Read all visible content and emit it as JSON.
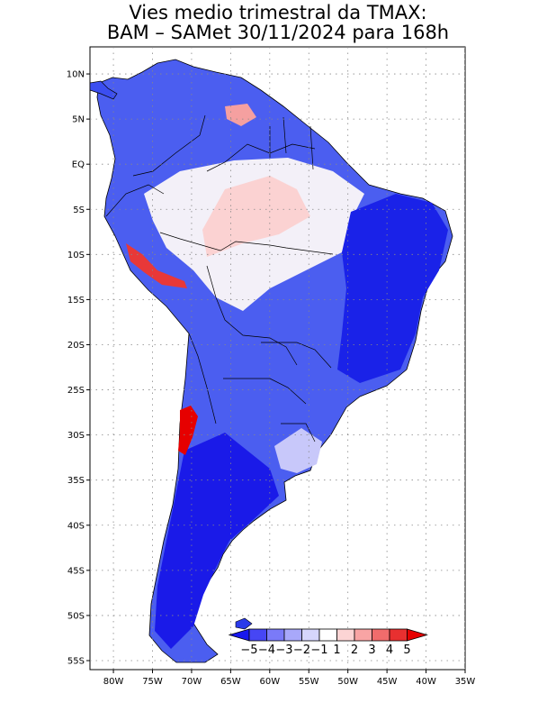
{
  "title": {
    "line1": "Vies medio trimestral da TMAX:",
    "line2": "BAM – SAMet 30/11/2024  para 168h"
  },
  "map": {
    "lon_range": [
      -83,
      -35
    ],
    "lat_range": [
      -56,
      13
    ],
    "lat_labels": [
      "10N",
      "5N",
      "EQ",
      "5S",
      "10S",
      "15S",
      "20S",
      "25S",
      "30S",
      "35S",
      "40S",
      "45S",
      "50S",
      "55S"
    ],
    "lat_values": [
      10,
      5,
      0,
      -5,
      -10,
      -15,
      -20,
      -25,
      -30,
      -35,
      -40,
      -45,
      -50,
      -55
    ],
    "lon_labels": [
      "80W",
      "75W",
      "70W",
      "65W",
      "60W",
      "55W",
      "50W",
      "45W",
      "40W",
      "35W"
    ],
    "lon_values": [
      -80,
      -75,
      -70,
      -65,
      -60,
      -55,
      -50,
      -45,
      -40,
      -35
    ],
    "grid": "dotted"
  },
  "colorbar": {
    "labels": [
      "−5",
      "−4",
      "−3",
      "−2",
      "−1",
      "1",
      "2",
      "3",
      "4",
      "5"
    ],
    "colors": [
      "#1818ee",
      "#4646f4",
      "#7a7af8",
      "#a8a8fa",
      "#d6d6fc",
      "#ffffff",
      "#fcd4d4",
      "#f8a4a4",
      "#f06c6c",
      "#e83030",
      "#e60000"
    ]
  }
}
